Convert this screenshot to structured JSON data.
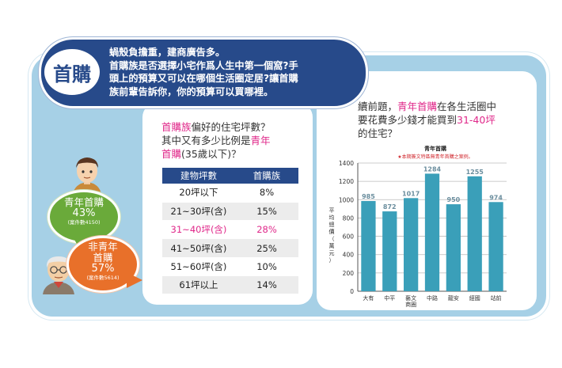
{
  "header": {
    "badge": "首購",
    "lines": [
      "蝸殼負擔重，建商廣告多。",
      "首購族是否選擇小宅作爲人生中第一個窩?手",
      "頭上的預算又可以在哪個生活圈定居?讓首購",
      "族前輩告訴你，你的預算可以買哪裡。"
    ]
  },
  "left_question": {
    "line1_pink": "首購族",
    "line1_rest": "偏好的住宅坪數？",
    "line2_pre": "其中又有多少比例是",
    "line2_pink": "青年",
    "line3_pink": "首購",
    "line3_rest": "(35歲以下)？"
  },
  "table": {
    "headers": [
      "建物坪數",
      "首購族"
    ],
    "rows": [
      [
        "20坪以下",
        "8%"
      ],
      [
        "21~30坪(含)",
        "15%"
      ],
      [
        "31~40坪(含)",
        "28%"
      ],
      [
        "41~50坪(含)",
        "25%"
      ],
      [
        "51~60坪(含)",
        "10%"
      ],
      [
        "61坪以上",
        "14%"
      ]
    ]
  },
  "bubbles": {
    "green": {
      "line1": "青年首購",
      "pct": "43%",
      "note": "(案件數4150)",
      "color": "#6aaa3a"
    },
    "orange": {
      "line1": "非青年",
      "line2": "首購",
      "pct": "57%",
      "note": "(案件數5614)",
      "color": "#e8702a"
    }
  },
  "right_question": {
    "l1_pre": "續前題，",
    "l1_pink": "青年首購",
    "l1_post": "在各生活圈中",
    "l2_pre": "要花費多少錢才能買到",
    "l2_pink": "31-40坪",
    "l3": "的住宅？"
  },
  "chart_data": {
    "type": "bar",
    "title": "青年首購",
    "note": "★本期簽文特區無青年首購之案例。",
    "ylabel": "平均總價（萬元）",
    "categories": [
      "大有",
      "中平",
      "藝文\n商圈",
      "中路",
      "龍安",
      "經國",
      "站前"
    ],
    "values": [
      985,
      872,
      1017,
      1284,
      950,
      1255,
      974
    ],
    "yticks": [
      0,
      200,
      400,
      600,
      800,
      1000,
      1200,
      1400
    ],
    "ylim": [
      0,
      1400
    ],
    "bar_color": "#3a9fb9",
    "label_color": "#6b8e9e",
    "grid": true
  }
}
